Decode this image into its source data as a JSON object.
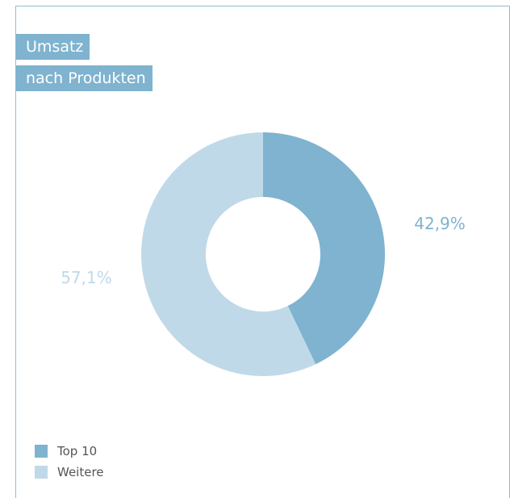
{
  "header": {
    "title_line1": "Umsatz",
    "title_line2": "nach Produkten"
  },
  "chart_data": {
    "type": "pie",
    "donut": true,
    "title": "Umsatz nach Produkten",
    "categories": [
      "Top 10",
      "Weitere"
    ],
    "values": [
      42.9,
      57.1
    ],
    "value_labels": [
      "42,9%",
      "57,1%"
    ],
    "colors": [
      "#7fb3cf",
      "#c0d9e8"
    ],
    "legend_position": "bottom-left"
  }
}
